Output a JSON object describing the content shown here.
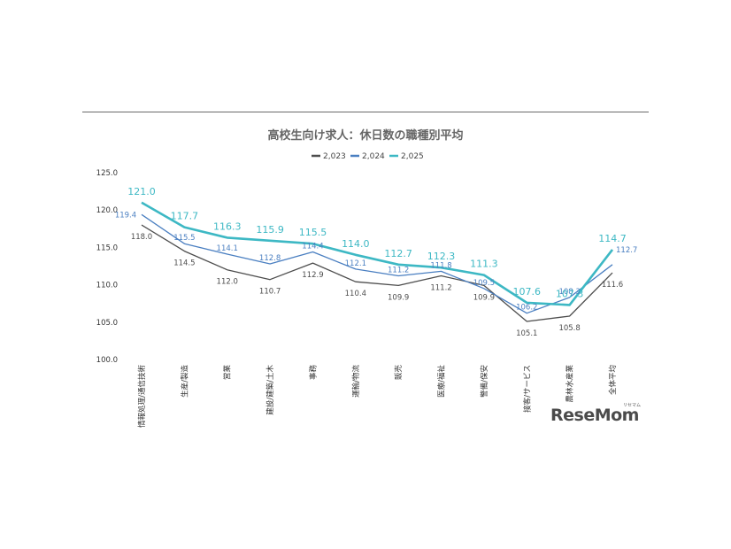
{
  "brand": {
    "name": "ReseMom",
    "reading": "リセマム"
  },
  "chart_data": {
    "type": "line",
    "title": "高校生向け求人：休日数の職種別平均",
    "xlabel": "",
    "ylabel": "",
    "ylim": [
      100.0,
      125.0
    ],
    "yticks": [
      "100.0",
      "105.0",
      "110.0",
      "115.0",
      "120.0",
      "125.0"
    ],
    "legend_position": "top-center",
    "grid": false,
    "categories": [
      "情報処理/通信技術",
      "生産/製造",
      "営業",
      "建設/建築/土木",
      "事務",
      "運輸/物流",
      "販売",
      "医療/福祉",
      "警備/保安",
      "接客/サービス",
      "農林水産業",
      "全体平均"
    ],
    "series": [
      {
        "name": "2,023",
        "color": "#4d4d4d",
        "values": [
          118.0,
          114.5,
          112.0,
          110.7,
          112.9,
          110.4,
          109.9,
          111.2,
          109.9,
          105.1,
          105.8,
          111.6
        ]
      },
      {
        "name": "2,024",
        "color": "#4a7fc1",
        "values": [
          119.4,
          115.5,
          114.1,
          112.8,
          114.4,
          112.1,
          111.2,
          111.8,
          109.5,
          106.2,
          108.3,
          112.7
        ]
      },
      {
        "name": "2,025",
        "color": "#3db8c4",
        "values": [
          121.0,
          117.7,
          116.3,
          115.9,
          115.5,
          114.0,
          112.7,
          112.3,
          111.3,
          107.6,
          107.3,
          114.7
        ]
      }
    ]
  }
}
